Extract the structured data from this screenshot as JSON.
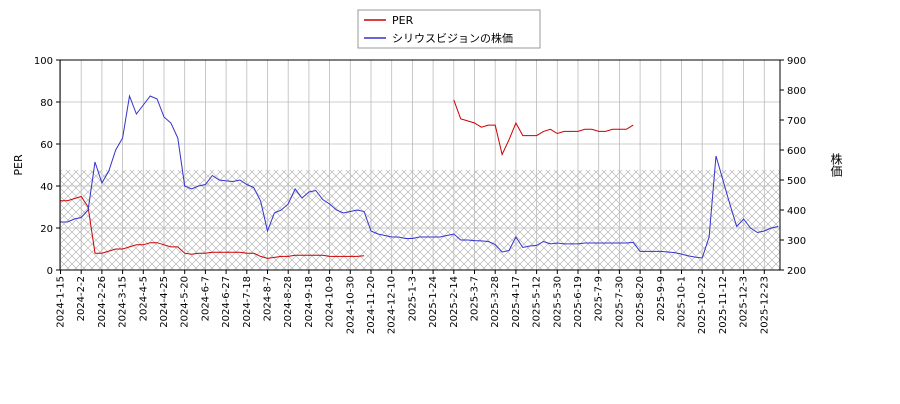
{
  "chart_data": {
    "type": "line",
    "x": [
      "2024-1-15",
      null,
      null,
      "2024-2-2",
      null,
      null,
      "2024-2-26",
      null,
      null,
      "2024-3-15",
      null,
      null,
      "2024-4-5",
      null,
      null,
      "2024-4-25",
      null,
      null,
      "2024-5-20",
      null,
      null,
      "2024-6-7",
      null,
      null,
      "2024-6-27",
      null,
      null,
      "2024-7-18",
      null,
      null,
      "2024-8-7",
      null,
      null,
      "2024-8-28",
      null,
      null,
      "2024-9-18",
      null,
      null,
      "2024-10-9",
      null,
      null,
      "2024-10-30",
      null,
      null,
      "2024-11-20",
      null,
      null,
      "2024-12-10",
      null,
      null,
      "2025-1-3",
      null,
      null,
      "2025-1-24",
      null,
      null,
      "2025-2-14",
      null,
      null,
      "2025-3-7",
      null,
      null,
      "2025-3-28",
      null,
      null,
      "2025-4-17",
      null,
      null,
      "2025-5-12",
      null,
      null,
      "2025-5-30",
      null,
      null,
      "2025-6-19",
      null,
      null,
      "2025-7-9",
      null,
      null,
      "2025-7-30",
      null,
      null,
      "2025-8-20",
      null,
      null,
      "2025-9-9",
      null,
      null,
      "2025-10-1",
      null,
      null,
      "2025-10-22",
      null,
      null,
      "2025-11-12",
      null,
      null,
      "2025-12-3",
      null,
      null,
      "2025-12-23",
      null,
      null
    ],
    "series": [
      {
        "name": "PER",
        "color": "#cc0000",
        "axis": "y",
        "values": [
          33,
          33,
          34,
          35,
          30,
          8,
          8,
          9,
          10,
          10,
          11,
          12,
          12,
          13,
          13,
          12,
          11,
          11,
          8,
          7.5,
          8,
          8,
          8.5,
          8.5,
          8.5,
          8.5,
          8.5,
          8,
          8,
          6.5,
          5.5,
          6,
          6.5,
          6.5,
          7,
          7,
          7,
          7,
          7,
          6.5,
          6.5,
          6.5,
          6.5,
          6.5,
          6.8,
          null,
          null,
          null,
          null,
          null,
          null,
          null,
          null,
          null,
          null,
          null,
          null,
          81,
          72,
          71,
          70,
          68,
          69,
          69,
          55,
          62,
          70,
          64,
          64,
          64,
          66,
          67,
          65,
          66,
          66,
          66,
          67,
          67,
          66,
          66,
          67,
          67,
          67,
          69,
          null,
          null,
          null,
          null,
          null,
          null,
          null,
          null,
          null,
          null,
          null,
          null,
          null,
          null,
          null,
          null,
          null,
          null,
          null,
          null,
          null
        ]
      },
      {
        "name": "シリウスビジョンの株価",
        "color": "#3333cc",
        "axis": "y2",
        "values": [
          360,
          360,
          370,
          375,
          400,
          560,
          490,
          530,
          600,
          640,
          780,
          720,
          750,
          780,
          770,
          710,
          690,
          640,
          480,
          470,
          480,
          485,
          515,
          500,
          497,
          495,
          500,
          485,
          475,
          430,
          330,
          390,
          400,
          420,
          470,
          440,
          460,
          465,
          435,
          420,
          400,
          390,
          395,
          400,
          395,
          330,
          320,
          315,
          310,
          310,
          305,
          305,
          310,
          310,
          310,
          310,
          315,
          320,
          300,
          300,
          298,
          297,
          295,
          285,
          260,
          265,
          310,
          275,
          280,
          282,
          295,
          287,
          290,
          287,
          287,
          287,
          290,
          290,
          290,
          290,
          290,
          290,
          290,
          292,
          262,
          262,
          262,
          262,
          260,
          258,
          253,
          247,
          243,
          240,
          310,
          580,
          500,
          420,
          345,
          370,
          340,
          325,
          330,
          340,
          345
        ]
      }
    ],
    "ylabel": "PER",
    "y2label": "株価",
    "ylim": [
      0,
      100
    ],
    "yticks": [
      0,
      20,
      40,
      60,
      80,
      100
    ],
    "y2lim": [
      200,
      900
    ],
    "y2ticks": [
      200,
      300,
      400,
      500,
      600,
      700,
      800,
      900
    ],
    "grid": true,
    "legend": "upper center"
  }
}
